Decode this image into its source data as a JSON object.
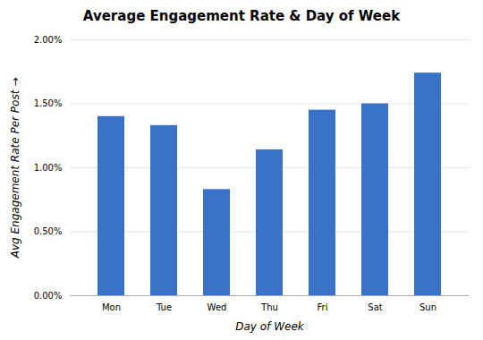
{
  "chart_data": {
    "type": "bar",
    "title": "Average Engagement Rate & Day of Week",
    "xlabel": "Day of Week",
    "ylabel": "Avg Engagement Rate Per Post",
    "categories": [
      "Mon",
      "Tue",
      "Wed",
      "Thu",
      "Fri",
      "Sat",
      "Sun"
    ],
    "values": [
      0.014,
      0.0133,
      0.0083,
      0.0114,
      0.0145,
      0.015,
      0.0174
    ],
    "color": "#3a72c8",
    "ylim": [
      0,
      0.02
    ],
    "yticks": [
      {
        "value": 0.0,
        "label": "0.00%"
      },
      {
        "value": 0.005,
        "label": "0.50%"
      },
      {
        "value": 0.01,
        "label": "1.00%"
      },
      {
        "value": 0.015,
        "label": "1.50%"
      },
      {
        "value": 0.02,
        "label": "2.00%"
      }
    ],
    "grid": true
  }
}
